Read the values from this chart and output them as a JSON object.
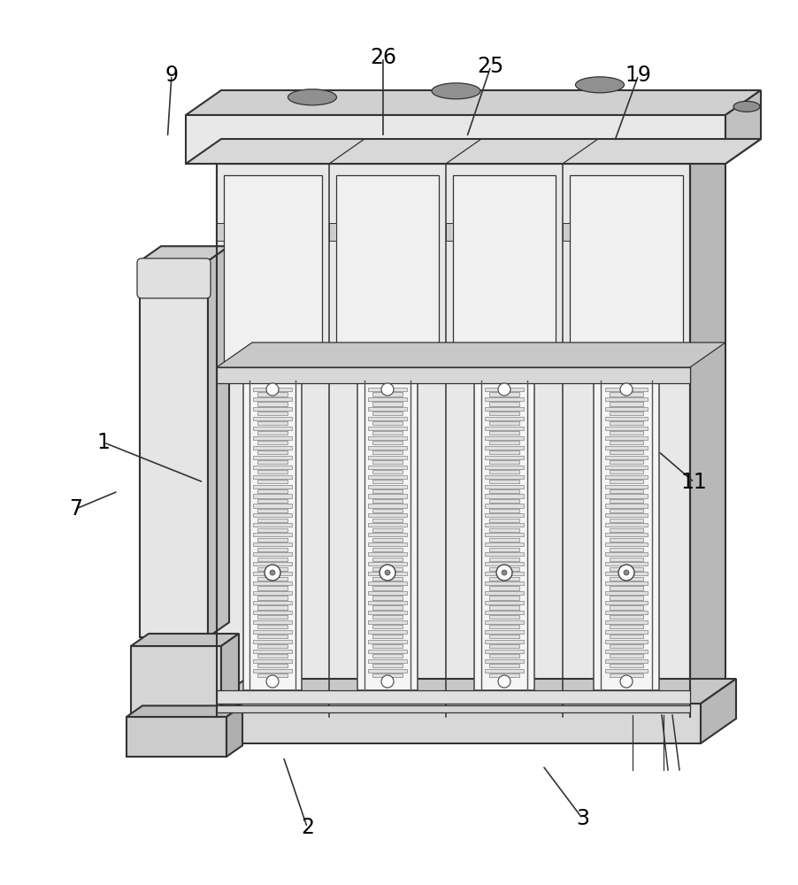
{
  "bg_color": "#ffffff",
  "lc": "#333333",
  "lw_main": 1.5,
  "lw_thin": 0.9,
  "lw_med": 1.1,
  "annotations": {
    "1": {
      "lp": [
        0.13,
        0.5
      ],
      "tp": [
        0.255,
        0.545
      ]
    },
    "2": {
      "lp": [
        0.385,
        0.935
      ],
      "tp": [
        0.355,
        0.855
      ]
    },
    "3": {
      "lp": [
        0.73,
        0.925
      ],
      "tp": [
        0.68,
        0.865
      ]
    },
    "7": {
      "lp": [
        0.095,
        0.575
      ],
      "tp": [
        0.148,
        0.555
      ]
    },
    "9": {
      "lp": [
        0.215,
        0.085
      ],
      "tp": [
        0.21,
        0.155
      ]
    },
    "11": {
      "lp": [
        0.87,
        0.545
      ],
      "tp": [
        0.825,
        0.51
      ]
    },
    "19": {
      "lp": [
        0.8,
        0.085
      ],
      "tp": [
        0.77,
        0.16
      ]
    },
    "25": {
      "lp": [
        0.615,
        0.075
      ],
      "tp": [
        0.585,
        0.155
      ]
    },
    "26": {
      "lp": [
        0.48,
        0.065
      ],
      "tp": [
        0.48,
        0.155
      ]
    }
  },
  "label_fontsize": 17
}
